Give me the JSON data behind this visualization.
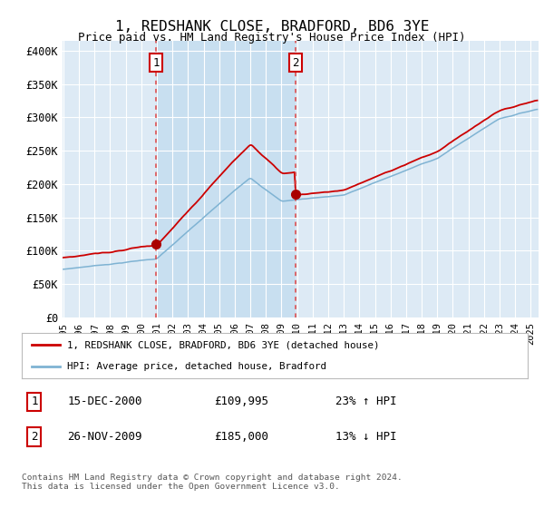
{
  "title": "1, REDSHANK CLOSE, BRADFORD, BD6 3YE",
  "subtitle": "Price paid vs. HM Land Registry's House Price Index (HPI)",
  "ylabel_ticks": [
    "£0",
    "£50K",
    "£100K",
    "£150K",
    "£200K",
    "£250K",
    "£300K",
    "£350K",
    "£400K"
  ],
  "ytick_values": [
    0,
    50000,
    100000,
    150000,
    200000,
    250000,
    300000,
    350000,
    400000
  ],
  "ylim": [
    0,
    415000
  ],
  "hpi_color": "#7fb3d3",
  "price_color": "#cc0000",
  "sale1_year": 2000.96,
  "sale1_price": 109995,
  "sale2_year": 2009.9,
  "sale2_price": 185000,
  "legend_label1": "1, REDSHANK CLOSE, BRADFORD, BD6 3YE (detached house)",
  "legend_label2": "HPI: Average price, detached house, Bradford",
  "table_row1": [
    "1",
    "15-DEC-2000",
    "£109,995",
    "23% ↑ HPI"
  ],
  "table_row2": [
    "2",
    "26-NOV-2009",
    "£185,000",
    "13% ↓ HPI"
  ],
  "footer": "Contains HM Land Registry data © Crown copyright and database right 2024.\nThis data is licensed under the Open Government Licence v3.0.",
  "background_color": "#ffffff",
  "plot_bg_color": "#ddeaf5",
  "shade_bg_color": "#c8dff0",
  "grid_color": "#ffffff"
}
